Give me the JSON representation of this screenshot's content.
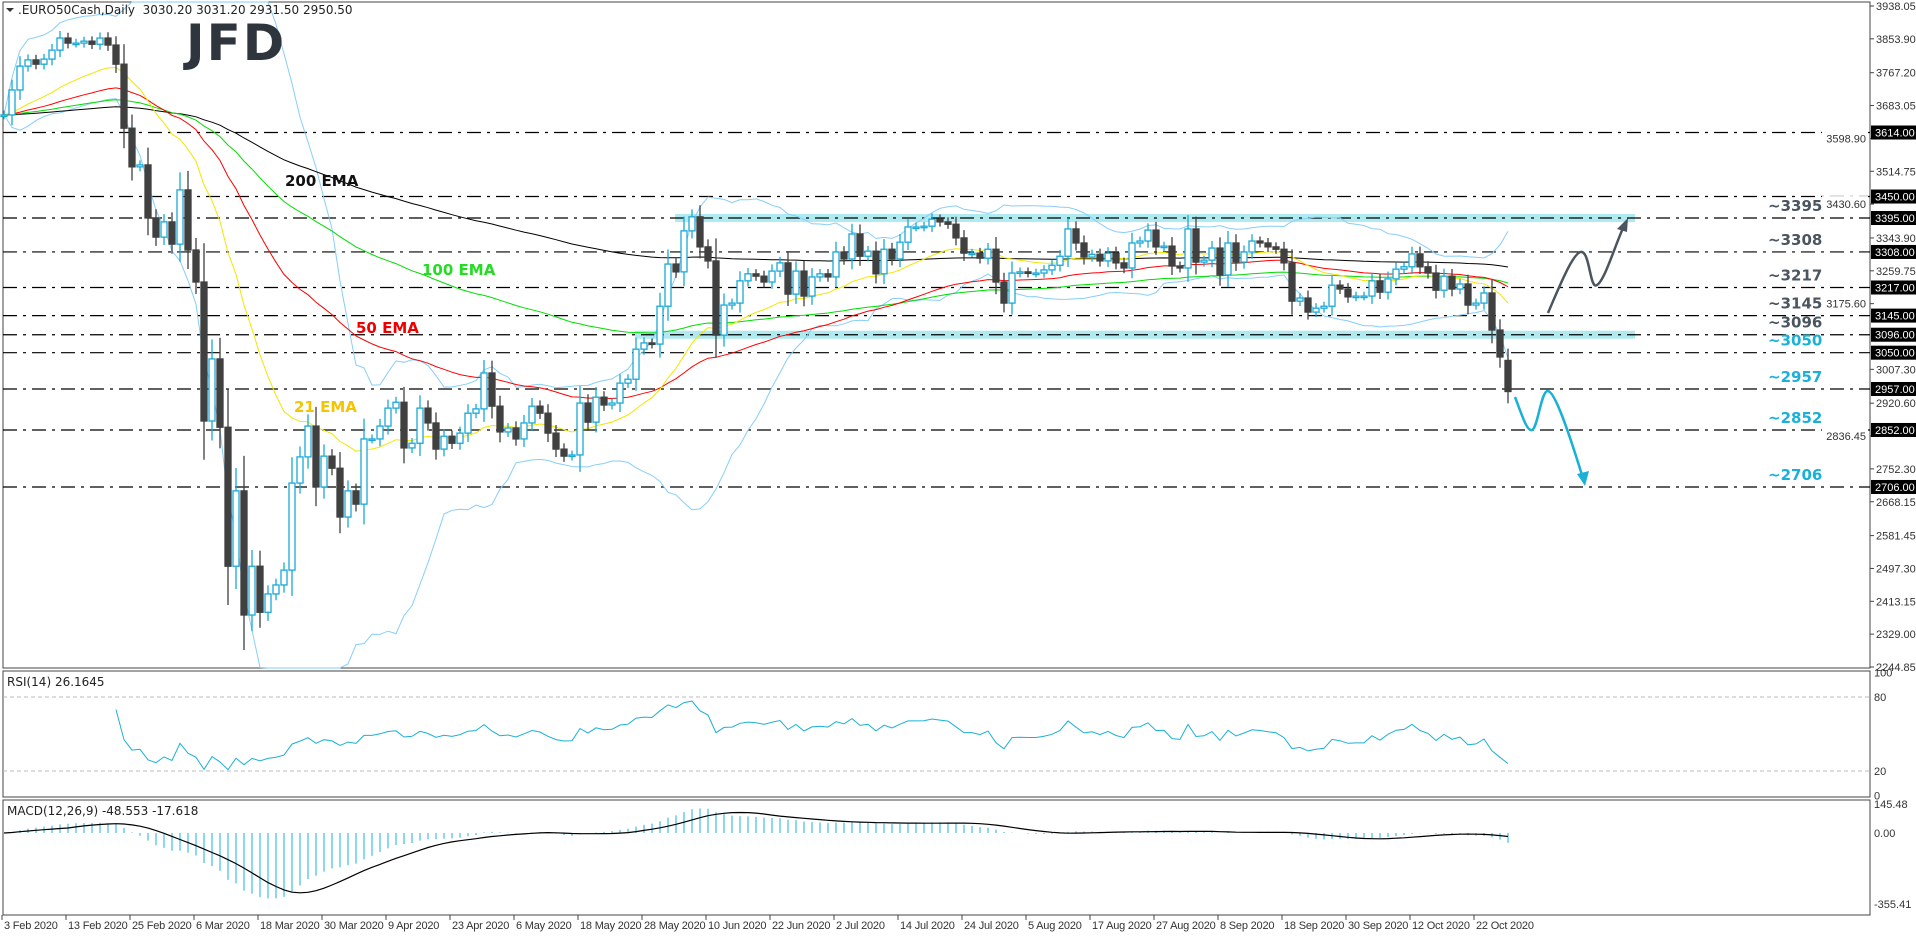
{
  "header": {
    "symbol_line": ".EURO50Cash,Daily  3030.20 3031.20 2931.50 2950.50"
  },
  "logo": {
    "text": "JFD",
    "color": "#2f353d"
  },
  "colors": {
    "up_candle": "#1aa9d6",
    "down_candle": "#404040",
    "ema21": "#f2e600",
    "ema50": "#ff0000",
    "ema100": "#00dd00",
    "ema200": "#000000",
    "bollinger": "#87cefa",
    "rsi": "#1ab0d8",
    "macd_hist": "#1ab0d8",
    "macd_signal": "#000000",
    "zone": "#aeeaf0",
    "label_grey": "#4a5560",
    "label_cyan": "#1ab0d8"
  },
  "ema_labels": [
    {
      "text": "200 EMA",
      "color": "#111111"
    },
    {
      "text": "100 EMA",
      "color": "#22dd22"
    },
    {
      "text": "50 EMA",
      "color": "#ee0000"
    },
    {
      "text": "21 EMA",
      "color": "#f5c400"
    }
  ],
  "price_axis": [
    "3938.05",
    "3853.90",
    "3767.20",
    "3683.05",
    "3598.90",
    "3514.75",
    "3430.60",
    "3343.90",
    "3259.75",
    "3175.60",
    "3007.30",
    "2920.60",
    "2836.45",
    "2752.30",
    "2668.15",
    "2581.45",
    "2497.30",
    "2413.15",
    "2329.00",
    "2244.85"
  ],
  "levels": [
    {
      "value": 3614,
      "box": "3614.00",
      "label": ""
    },
    {
      "value": 3450,
      "box": "3450.00",
      "label": ""
    },
    {
      "value": 3395,
      "box": "3395.00",
      "label": "~3395",
      "label_color": "grey",
      "zone": true
    },
    {
      "value": 3308,
      "box": "3308.00",
      "label": "~3308",
      "label_color": "grey"
    },
    {
      "value": 3217,
      "box": "3217.00",
      "label": "~3217",
      "label_color": "grey"
    },
    {
      "value": 3145,
      "box": "3145.00",
      "label": "~3145",
      "label_color": "grey"
    },
    {
      "value": 3096,
      "box": "3096.00",
      "label": "~3096",
      "label_color": "grey",
      "zone": true
    },
    {
      "value": 3050,
      "box": "3050.00",
      "label": "~3050",
      "label_color": "cyan"
    },
    {
      "value": 2957,
      "box": "2957.00",
      "label": "~2957",
      "label_color": "cyan"
    },
    {
      "value": 2852,
      "box": "2852.00",
      "label": "~2852",
      "label_color": "cyan"
    },
    {
      "value": 2706,
      "box": "2706.00",
      "label": "~2706",
      "label_color": "cyan"
    }
  ],
  "scenarios": [
    {
      "direction": "up",
      "color": "grey",
      "target": 3395
    },
    {
      "direction": "down",
      "color": "cyan",
      "target": 2706
    }
  ],
  "rsi": {
    "title": "RSI(14) 26.1645",
    "axis": [
      "100",
      "80",
      "20",
      "0"
    ]
  },
  "macd": {
    "title": "MACD(12,26,9) -48.553 -17.618",
    "axis": [
      "145.48",
      "0.00",
      "-355.41"
    ]
  },
  "date_axis": [
    "3 Feb 2020",
    "13 Feb 2020",
    "25 Feb 2020",
    "6 Mar 2020",
    "18 Mar 2020",
    "30 Mar 2020",
    "9 Apr 2020",
    "23 Apr 2020",
    "6 May 2020",
    "18 May 2020",
    "28 May 2020",
    "10 Jun 2020",
    "22 Jun 2020",
    "2 Jul 2020",
    "14 Jul 2020",
    "24 Jul 2020",
    "5 Aug 2020",
    "17 Aug 2020",
    "27 Aug 2020",
    "8 Sep 2020",
    "18 Sep 2020",
    "30 Sep 2020",
    "12 Oct 2020",
    "22 Oct 2020"
  ],
  "chart_data": {
    "type": "candlestick",
    "symbol": ".EURO50Cash",
    "timeframe": "Daily",
    "ylim": [
      2244.85,
      3938.05
    ],
    "last_bar": {
      "open": 3030.2,
      "high": 3031.2,
      "low": 2931.5,
      "close": 2950.5
    },
    "indicators": [
      "21 EMA",
      "50 EMA",
      "100 EMA",
      "200 EMA",
      "Bollinger Bands",
      "RSI(14)",
      "MACD(12,26,9)"
    ],
    "closes": [
      3659,
      3723,
      3784,
      3800,
      3789,
      3802,
      3825,
      3856,
      3843,
      3843,
      3848,
      3840,
      3856,
      3838,
      3789,
      3625,
      3526,
      3531,
      3395,
      3346,
      3385,
      3328,
      3467,
      3313,
      3231,
      2875,
      3034,
      2859,
      2503,
      2696,
      2378,
      2503,
      2385,
      2432,
      2455,
      2493,
      2716,
      2783,
      2862,
      2706,
      2785,
      2754,
      2629,
      2696,
      2662,
      2829,
      2829,
      2862,
      2908,
      2923,
      2806,
      2818,
      2908,
      2870,
      2803,
      2836,
      2818,
      2844,
      2895,
      2906,
      2998,
      2913,
      2847,
      2857,
      2829,
      2870,
      2913,
      2895,
      2844,
      2803,
      2785,
      2788,
      2921,
      2872,
      2936,
      2916,
      2921,
      2972,
      2982,
      3059,
      3075,
      3072,
      3169,
      3277,
      3257,
      3362,
      3398,
      3321,
      3285,
      3095,
      3172,
      3177,
      3234,
      3252,
      3246,
      3231,
      3259,
      3280,
      3200,
      3259,
      3195,
      3244,
      3252,
      3244,
      3308,
      3290,
      3354,
      3297,
      3310,
      3252,
      3315,
      3290,
      3333,
      3372,
      3372,
      3374,
      3392,
      3385,
      3379,
      3344,
      3305,
      3305,
      3292,
      3315,
      3231,
      3177,
      3254,
      3257,
      3254,
      3254,
      3262,
      3274,
      3297,
      3367,
      3331,
      3295,
      3302,
      3285,
      3305,
      3280,
      3267,
      3331,
      3336,
      3364,
      3321,
      3323,
      3272,
      3267,
      3367,
      3282,
      3287,
      3318,
      3249,
      3331,
      3282,
      3308,
      3336,
      3331,
      3321,
      3315,
      3280,
      3182,
      3190,
      3154,
      3164,
      3169,
      3223,
      3213,
      3193,
      3195,
      3195,
      3234,
      3205,
      3239,
      3264,
      3270,
      3303,
      3270,
      3254,
      3210,
      3246,
      3213,
      3226,
      3172,
      3177,
      3203,
      3108,
      3039,
      2950.5
    ]
  }
}
